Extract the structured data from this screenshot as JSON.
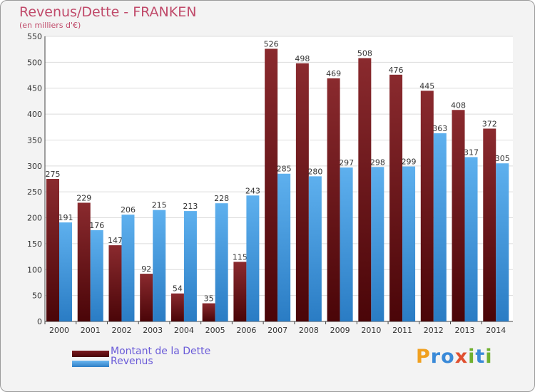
{
  "chart_data": {
    "type": "bar",
    "title": "Revenus/Dette - FRANKEN",
    "subtitle": "(en milliers d'€)",
    "categories": [
      "2000",
      "2001",
      "2002",
      "2003",
      "2004",
      "2005",
      "2006",
      "2007",
      "2008",
      "2009",
      "2010",
      "2011",
      "2012",
      "2013",
      "2014"
    ],
    "series": [
      {
        "name": "Montant de la Dette",
        "color": "#7a1a1e",
        "values": [
          275,
          229,
          147,
          92,
          54,
          35,
          115,
          526,
          498,
          469,
          508,
          476,
          445,
          408,
          372
        ]
      },
      {
        "name": "Revenus",
        "color": "#4ea3e6",
        "values": [
          191,
          176,
          206,
          215,
          213,
          228,
          243,
          285,
          280,
          297,
          298,
          299,
          363,
          317,
          305
        ]
      }
    ],
    "ylim": [
      0,
      550
    ],
    "yticks": [
      "0",
      "50",
      "100",
      "150",
      "200",
      "250",
      "300",
      "350",
      "400",
      "450",
      "500",
      "550"
    ],
    "grid": true,
    "legend_position": "bottom-left"
  },
  "logo": {
    "letters": [
      "P",
      "r",
      "o",
      "x",
      "i",
      "t",
      "i"
    ],
    "colors": [
      "#f0a020",
      "#3a8ad8",
      "#3a8ad8",
      "#e05030",
      "#70b030",
      "#3a8ad8",
      "#70b030"
    ]
  }
}
